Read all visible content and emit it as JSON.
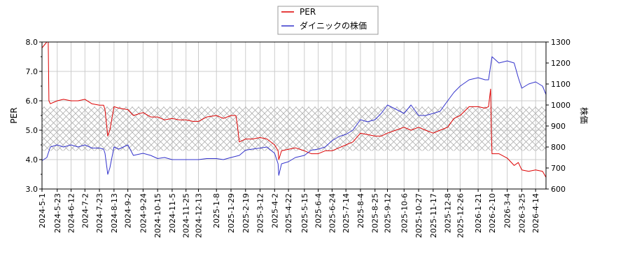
{
  "chart_data": {
    "type": "line",
    "title": "",
    "xlabel": "",
    "ylabel_left": "PER",
    "ylabel_right": "株価",
    "y_left_lim": [
      3.0,
      8.0
    ],
    "y_right_lim": [
      600,
      1300
    ],
    "y_left_ticks": [
      "3.0",
      "4.0",
      "5.0",
      "6.0",
      "7.0",
      "8.0"
    ],
    "y_right_ticks": [
      "600",
      "700",
      "800",
      "900",
      "1000",
      "1100",
      "1200",
      "1300"
    ],
    "x_ticks": [
      "2024-5-1",
      "2024-5-23",
      "2024-6-12",
      "2024-7-2",
      "2024-7-23",
      "2024-8-13",
      "2024-9-2",
      "2024-9-24",
      "2024-10-15",
      "2024-11-5",
      "2024-11-25",
      "2024-12-13",
      "2025-1-8",
      "2025-1-29",
      "2025-2-19",
      "2025-3-12",
      "2025-4-2",
      "2025-4-22",
      "2025-5-15",
      "2025-6-4",
      "2025-6-24",
      "2025-7-14",
      "2025-8-4",
      "2025-8-25",
      "2025-9-12",
      "2025-10-6",
      "2025-10-27",
      "2025-11-17",
      "2025-12-8",
      "2025-12-26",
      "2026-1-21",
      "2026-2-10",
      "2026-3-4",
      "2026-3-25",
      "2026-4-14"
    ],
    "grid": true,
    "legend_position": "top-center",
    "band_left": [
      4.3,
      5.8
    ],
    "series": [
      {
        "name": "PER",
        "axis": "left",
        "color": "#dd0000",
        "x": [
          "2024-5-1",
          "2024-5-8",
          "2024-5-10",
          "2024-5-11",
          "2024-5-13",
          "2024-5-23",
          "2024-6-1",
          "2024-6-12",
          "2024-6-22",
          "2024-7-2",
          "2024-7-12",
          "2024-7-23",
          "2024-7-29",
          "2024-7-31",
          "2024-8-4",
          "2024-8-7",
          "2024-8-13",
          "2024-8-20",
          "2024-9-2",
          "2024-9-10",
          "2024-9-24",
          "2024-10-5",
          "2024-10-15",
          "2024-10-25",
          "2024-11-5",
          "2024-11-15",
          "2024-11-25",
          "2024-12-5",
          "2024-12-13",
          "2024-12-25",
          "2025-1-8",
          "2025-1-18",
          "2025-1-29",
          "2025-2-5",
          "2025-2-7",
          "2025-2-10",
          "2025-2-19",
          "2025-3-1",
          "2025-3-12",
          "2025-3-22",
          "2025-4-2",
          "2025-4-7",
          "2025-4-8",
          "2025-4-12",
          "2025-4-22",
          "2025-5-2",
          "2025-5-15",
          "2025-5-25",
          "2025-6-4",
          "2025-6-14",
          "2025-6-24",
          "2025-7-4",
          "2025-7-14",
          "2025-7-24",
          "2025-8-4",
          "2025-8-14",
          "2025-8-25",
          "2025-9-3",
          "2025-9-12",
          "2025-9-24",
          "2025-10-6",
          "2025-10-16",
          "2025-10-27",
          "2025-11-6",
          "2025-11-17",
          "2025-11-27",
          "2025-12-8",
          "2025-12-17",
          "2025-12-26",
          "2026-1-8",
          "2026-1-21",
          "2026-1-31",
          "2026-2-5",
          "2026-2-8",
          "2026-2-9",
          "2026-2-10",
          "2026-2-20",
          "2026-3-4",
          "2026-3-14",
          "2026-3-20",
          "2026-3-25",
          "2026-4-4",
          "2026-4-14",
          "2026-4-24",
          "2026-4-29"
        ],
        "values": [
          7.8,
          8.0,
          8.0,
          6.0,
          5.9,
          6.0,
          6.05,
          6.0,
          6.0,
          6.05,
          5.9,
          5.85,
          5.85,
          5.7,
          4.8,
          5.0,
          5.8,
          5.75,
          5.7,
          5.5,
          5.6,
          5.45,
          5.45,
          5.35,
          5.4,
          5.35,
          5.35,
          5.3,
          5.3,
          5.45,
          5.5,
          5.4,
          5.5,
          5.5,
          5.2,
          4.6,
          4.7,
          4.7,
          4.75,
          4.7,
          4.5,
          4.3,
          4.0,
          4.3,
          4.35,
          4.4,
          4.3,
          4.2,
          4.2,
          4.3,
          4.3,
          4.4,
          4.5,
          4.6,
          4.9,
          4.85,
          4.8,
          4.8,
          4.9,
          5.0,
          5.1,
          5.0,
          5.1,
          5.0,
          4.9,
          5.0,
          5.1,
          5.4,
          5.5,
          5.8,
          5.8,
          5.75,
          5.8,
          6.4,
          5.0,
          4.2,
          4.2,
          4.05,
          3.8,
          3.9,
          3.65,
          3.6,
          3.65,
          3.6,
          3.4
        ]
      },
      {
        "name": "ダイニックの株価",
        "axis": "right",
        "color": "#3333cc",
        "x": [
          "2024-5-1",
          "2024-5-8",
          "2024-5-13",
          "2024-5-23",
          "2024-6-1",
          "2024-6-12",
          "2024-6-22",
          "2024-7-2",
          "2024-7-12",
          "2024-7-23",
          "2024-7-29",
          "2024-7-31",
          "2024-8-4",
          "2024-8-7",
          "2024-8-13",
          "2024-8-20",
          "2024-9-2",
          "2024-9-10",
          "2024-9-24",
          "2024-10-5",
          "2024-10-15",
          "2024-10-25",
          "2024-11-5",
          "2024-11-15",
          "2024-11-25",
          "2024-12-5",
          "2024-12-13",
          "2024-12-25",
          "2025-1-8",
          "2025-1-18",
          "2025-1-29",
          "2025-2-10",
          "2025-2-19",
          "2025-3-1",
          "2025-3-12",
          "2025-3-22",
          "2025-4-2",
          "2025-4-7",
          "2025-4-8",
          "2025-4-12",
          "2025-4-22",
          "2025-5-2",
          "2025-5-15",
          "2025-5-25",
          "2025-6-4",
          "2025-6-14",
          "2025-6-24",
          "2025-7-4",
          "2025-7-14",
          "2025-7-24",
          "2025-8-4",
          "2025-8-14",
          "2025-8-25",
          "2025-9-3",
          "2025-9-12",
          "2025-9-24",
          "2025-10-6",
          "2025-10-16",
          "2025-10-27",
          "2025-11-6",
          "2025-11-17",
          "2025-11-27",
          "2025-12-8",
          "2025-12-17",
          "2025-12-26",
          "2026-1-8",
          "2026-1-21",
          "2026-1-31",
          "2026-2-5",
          "2026-2-10",
          "2026-2-20",
          "2026-3-4",
          "2026-3-14",
          "2026-3-20",
          "2026-3-25",
          "2026-4-4",
          "2026-4-14",
          "2026-4-24",
          "2026-4-29"
        ],
        "values": [
          735,
          750,
          800,
          810,
          800,
          810,
          800,
          810,
          795,
          795,
          790,
          770,
          670,
          700,
          800,
          790,
          810,
          760,
          770,
          760,
          745,
          750,
          740,
          740,
          740,
          740,
          740,
          745,
          745,
          740,
          750,
          760,
          785,
          790,
          795,
          800,
          770,
          720,
          665,
          720,
          730,
          750,
          760,
          785,
          790,
          800,
          830,
          850,
          860,
          880,
          930,
          920,
          930,
          960,
          1000,
          980,
          960,
          1000,
          950,
          950,
          960,
          970,
          1020,
          1060,
          1090,
          1120,
          1130,
          1120,
          1120,
          1230,
          1200,
          1210,
          1200,
          1130,
          1080,
          1100,
          1110,
          1090,
          1050
        ]
      }
    ]
  }
}
